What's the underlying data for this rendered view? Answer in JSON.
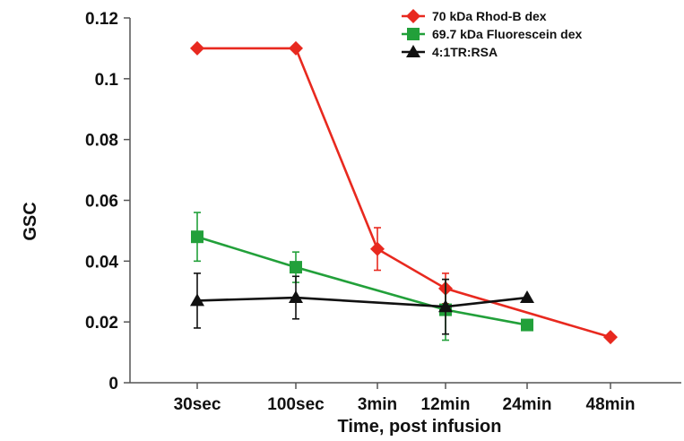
{
  "chart_data": {
    "type": "line",
    "title": "",
    "xlabel": "Time, post infusion",
    "ylabel": "GSC",
    "ylim": [
      0,
      0.12
    ],
    "yticks": [
      "0",
      "0.02",
      "0.04",
      "0.06",
      "0.08",
      "0.1",
      "0.12"
    ],
    "categories": [
      "30sec",
      "100sec",
      "3min",
      "12min",
      "24min",
      "48min"
    ],
    "grid": false,
    "legend_position": "top-right",
    "series": [
      {
        "name": "70 kDa Rhod-B dex",
        "color": "#e8291f",
        "marker": "diamond",
        "points": [
          {
            "x": "30sec",
            "y": 0.11
          },
          {
            "x": "100sec",
            "y": 0.11
          },
          {
            "x": "3min",
            "y": 0.044,
            "err": 0.007
          },
          {
            "x": "12min",
            "y": 0.031,
            "err": 0.005
          },
          {
            "x": "48min",
            "y": 0.015
          }
        ]
      },
      {
        "name": "69.7 kDa Fluorescein dex",
        "color": "#22a03a",
        "marker": "square",
        "points": [
          {
            "x": "30sec",
            "y": 0.048,
            "err": 0.008
          },
          {
            "x": "100sec",
            "y": 0.038,
            "err": 0.005
          },
          {
            "x": "12min",
            "y": 0.024,
            "err": 0.01
          },
          {
            "x": "24min",
            "y": 0.019
          }
        ]
      },
      {
        "name": "4:1TR:RSA",
        "color": "#111111",
        "marker": "triangle",
        "points": [
          {
            "x": "30sec",
            "y": 0.027,
            "err": 0.009
          },
          {
            "x": "100sec",
            "y": 0.028,
            "err": 0.007
          },
          {
            "x": "12min",
            "y": 0.025,
            "err": 0.009
          },
          {
            "x": "24min",
            "y": 0.028
          }
        ]
      }
    ]
  }
}
